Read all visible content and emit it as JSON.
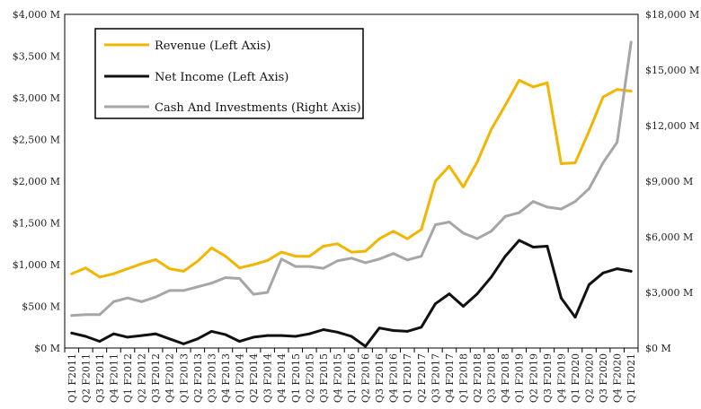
{
  "chart_data": {
    "type": "line",
    "categories": [
      "Q1 F2011",
      "Q2 F2011",
      "Q3 F2011",
      "Q4 F2011",
      "Q1 F2012",
      "Q2 F2012",
      "Q3 F2012",
      "Q4 F2012",
      "Q1 F2013",
      "Q2 F2013",
      "Q3 F2013",
      "Q4 F2013",
      "Q1 F2014",
      "Q2 F2014",
      "Q3 F2014",
      "Q4 F2014",
      "Q1 F2015",
      "Q2 F2015",
      "Q3 F2015",
      "Q4 F2015",
      "Q1 F2016",
      "Q2 F2016",
      "Q3 F2016",
      "Q4 F2016",
      "Q1 F2017",
      "Q2 F2017",
      "Q3 F2017",
      "Q4 F2017",
      "Q1 F2018",
      "Q2 F2018",
      "Q3 F2018",
      "Q4 F2018",
      "Q1 F2019",
      "Q2 F2019",
      "Q3 F2019",
      "Q4 F2019",
      "Q1 F2020",
      "Q2 F2020",
      "Q3 F2020",
      "Q4 F2020",
      "Q1 F2021"
    ],
    "x_tick_labels": [
      "Q1 F2011",
      "Q2 F2011",
      "Q3 F2011",
      "Q4 F2011",
      "Q1 F2012",
      "Q2 F2012",
      "Q3 F2012",
      "Q4 F2012",
      "Q1 F2013",
      "Q2 F2013",
      "Q3 F2013",
      "Q4 F2013",
      "Q1 F2014",
      "Q2 F2014",
      "Q3 F2014",
      "Q4 F2014",
      "Q1 F2015",
      "Q2 F2015",
      "Q3 F2015",
      "Q4 F2015",
      "Q1 F2016",
      "Q2 F2016",
      "Q3 F2016",
      "Q4 F2016",
      "Q1 F2017",
      "Q2 F2017",
      "Q3 F2017",
      "Q4 F2017",
      "Q1 F2018",
      "Q2 F2018",
      "Q3 F2018",
      "Q4 F2018",
      "Q1 F2019",
      "Q2 F2019",
      "Q3 F2019",
      "Q4 F2019",
      "Q1 F2020",
      "Q2 F2020",
      "Q3 F2020",
      "Q4 F2020",
      "Q1 F2021"
    ],
    "left_axis": {
      "ylim": [
        0,
        4000
      ],
      "ticks": [
        0,
        500,
        1000,
        1500,
        2000,
        2500,
        3000,
        3500,
        4000
      ],
      "tick_labels": [
        "$0 M",
        "$500 M",
        "$1,000 M",
        "$1,500 M",
        "$2,000 M",
        "$2,500 M",
        "$3,000 M",
        "$3,500 M",
        "$4,000 M"
      ]
    },
    "right_axis": {
      "ylim": [
        0,
        18000
      ],
      "ticks": [
        0,
        3000,
        6000,
        9000,
        12000,
        15000,
        18000
      ],
      "tick_labels": [
        "$0 M",
        "$3,000 M",
        "$6,000 M",
        "$9,000 M",
        "$12,000 M",
        "$15,000 M",
        "$18,000 M"
      ]
    },
    "series": [
      {
        "name": "Revenue (Left Axis)",
        "axis": "left",
        "color": "#f2b600",
        "values": [
          890,
          960,
          850,
          890,
          950,
          1010,
          1060,
          950,
          920,
          1040,
          1200,
          1100,
          960,
          1000,
          1050,
          1150,
          1100,
          1100,
          1220,
          1250,
          1150,
          1160,
          1310,
          1400,
          1310,
          1420,
          2000,
          2180,
          1930,
          2230,
          2620,
          2910,
          3210,
          3130,
          3180,
          2210,
          2220,
          2600,
          3010,
          3100,
          3080
        ]
      },
      {
        "name": "Net Income (Left Axis)",
        "axis": "left",
        "color": "#111111",
        "values": [
          180,
          140,
          80,
          170,
          130,
          150,
          170,
          110,
          50,
          110,
          200,
          160,
          80,
          130,
          150,
          150,
          140,
          170,
          220,
          190,
          140,
          20,
          240,
          210,
          200,
          250,
          530,
          650,
          500,
          650,
          850,
          1100,
          1290,
          1210,
          1220,
          600,
          370,
          760,
          900,
          950,
          920
        ]
      },
      {
        "name": "Cash And Investments (Right Axis)",
        "axis": "right",
        "color": "#a6a6a6",
        "values": [
          1750,
          1800,
          1800,
          2500,
          2700,
          2500,
          2750,
          3100,
          3100,
          3300,
          3500,
          3800,
          3750,
          2900,
          3000,
          4800,
          4400,
          4400,
          4300,
          4700,
          4850,
          4600,
          4800,
          5100,
          4750,
          4950,
          6650,
          6800,
          6200,
          5900,
          6300,
          7100,
          7300,
          7900,
          7600,
          7500,
          7900,
          8600,
          10000,
          11100,
          16500
        ]
      }
    ],
    "legend": [
      "Revenue (Left Axis)",
      "Net Income (Left Axis)",
      "Cash And Investments (Right Axis)"
    ],
    "legend_position": "top-left",
    "grid": false
  }
}
